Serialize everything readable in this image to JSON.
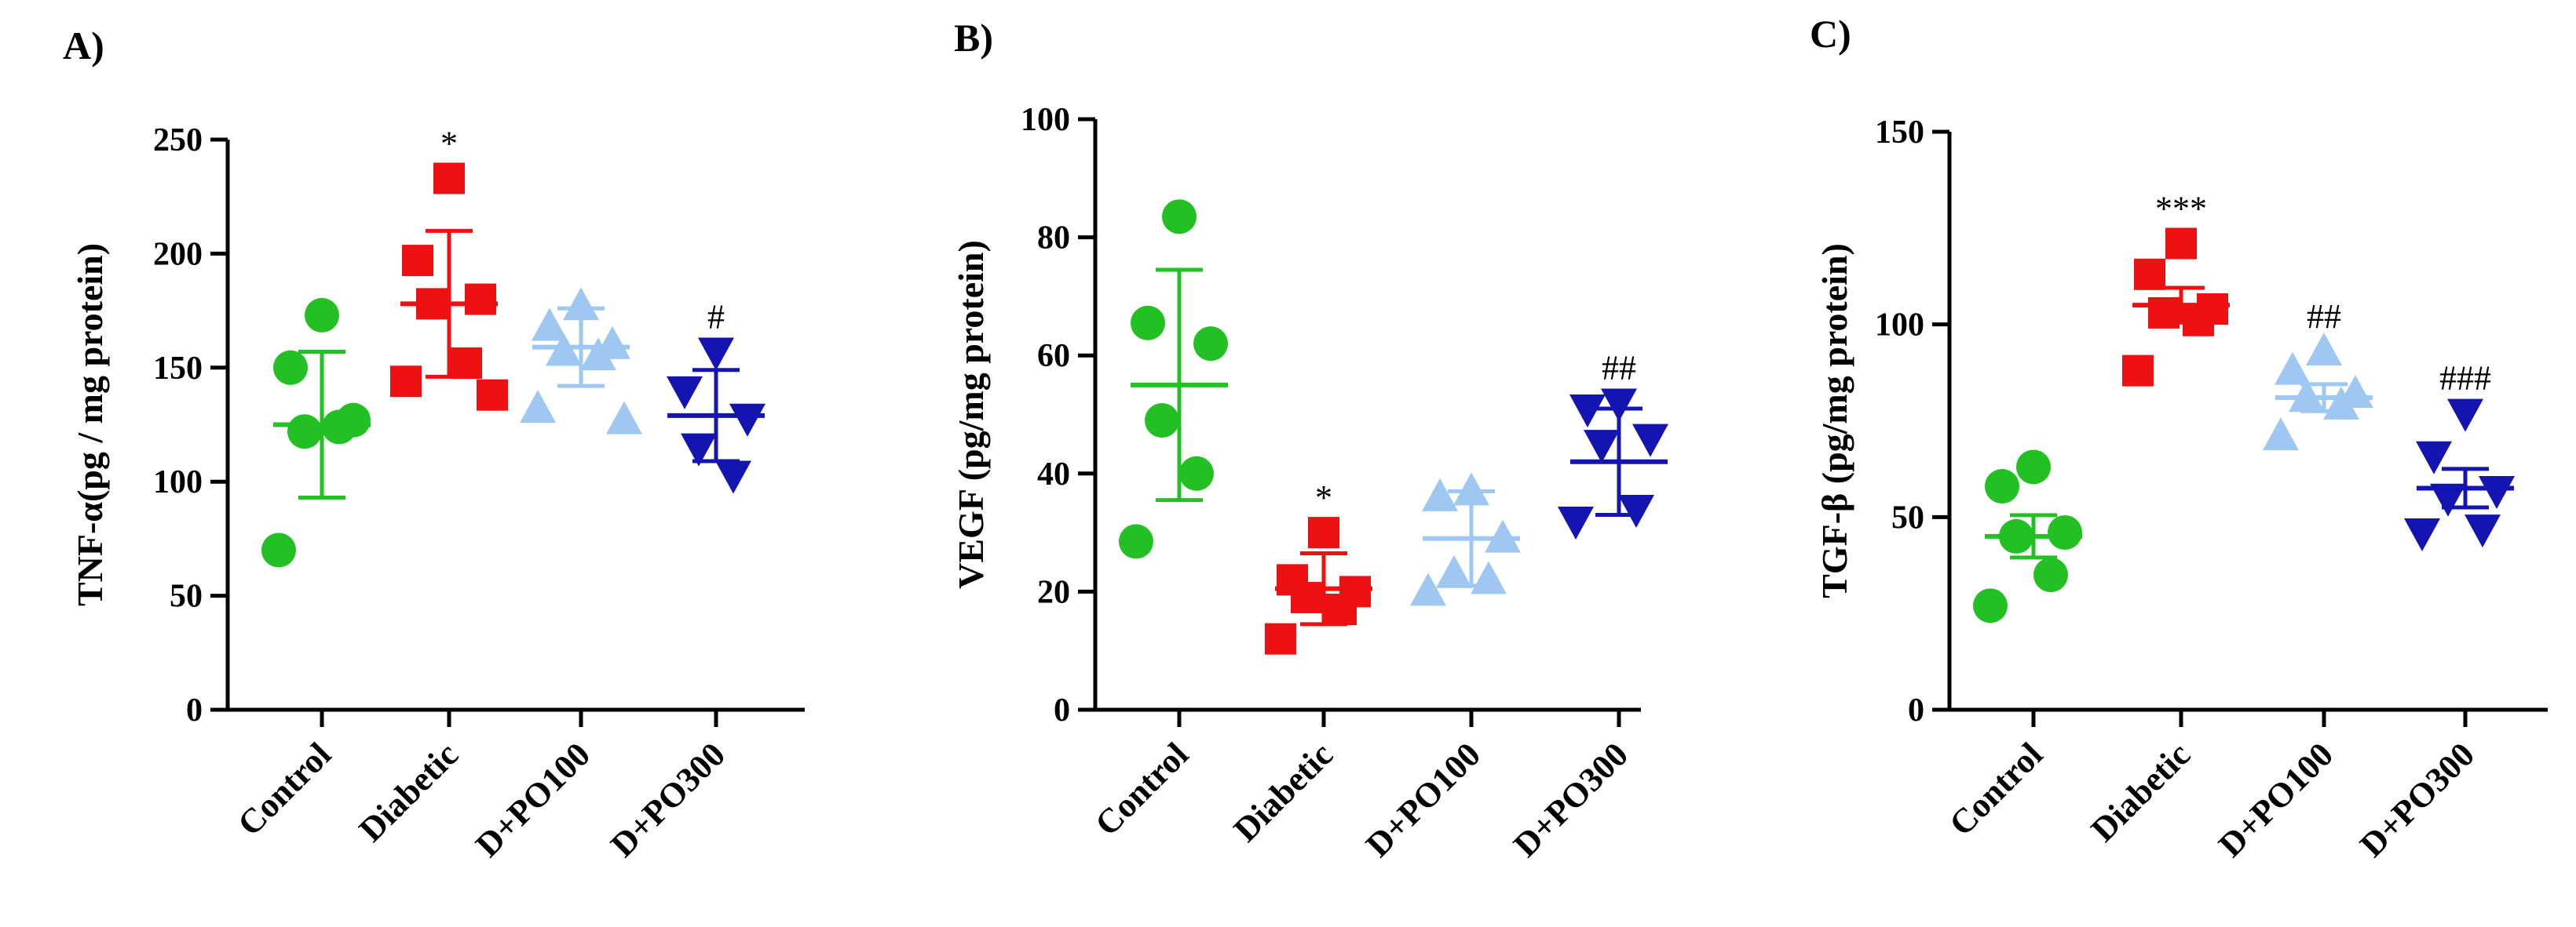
{
  "figure": {
    "panels": [
      "A)",
      "B)",
      "C)"
    ]
  },
  "chart_data": [
    {
      "type": "scatter",
      "panel_label": "A)",
      "ylabel": "TNF-α(pg / mg protein)",
      "xlabel": "",
      "ylim": [
        0,
        250
      ],
      "yticks": [
        0,
        50,
        100,
        150,
        200,
        250
      ],
      "categories": [
        "Control",
        "Diabetic",
        "D+PO100",
        "D+PO300"
      ],
      "groups": [
        {
          "name": "Control",
          "color": "#22c022",
          "marker": "circle",
          "points": [
            173,
            150,
            127,
            122,
            124,
            70
          ],
          "mean": 125,
          "sd": 32,
          "annotation": ""
        },
        {
          "name": "Diabetic",
          "color": "#ee1111",
          "marker": "square",
          "points": [
            233,
            197,
            180,
            178,
            152,
            144,
            138
          ],
          "mean": 178,
          "sd": 32,
          "annotation": "*"
        },
        {
          "name": "D+PO100",
          "color": "#9ec8f2",
          "marker": "triangle-up",
          "points": [
            177,
            168,
            160,
            157,
            155,
            132,
            127
          ],
          "mean": 159,
          "sd": 17,
          "annotation": ""
        },
        {
          "name": "D+PO300",
          "color": "#1414b0",
          "marker": "triangle-down",
          "points": [
            157,
            140,
            128,
            115,
            103
          ],
          "mean": 129,
          "sd": 20,
          "annotation": "#"
        }
      ]
    },
    {
      "type": "scatter",
      "panel_label": "B)",
      "ylabel": "VEGF (pg/mg protein)",
      "xlabel": "",
      "ylim": [
        0,
        100
      ],
      "yticks": [
        0,
        20,
        40,
        60,
        80,
        100
      ],
      "categories": [
        "Control",
        "Diabetic",
        "D+PO100",
        "D+PO300"
      ],
      "groups": [
        {
          "name": "Control",
          "color": "#22c022",
          "marker": "circle",
          "points": [
            83.5,
            65.5,
            62,
            49,
            40,
            28.5
          ],
          "mean": 55,
          "sd": 19.5,
          "annotation": ""
        },
        {
          "name": "Diabetic",
          "color": "#ee1111",
          "marker": "square",
          "points": [
            30,
            22,
            20,
            19,
            17,
            12
          ],
          "mean": 20.5,
          "sd": 6,
          "annotation": "*"
        },
        {
          "name": "D+PO100",
          "color": "#9ec8f2",
          "marker": "triangle-up",
          "points": [
            37,
            36,
            29,
            23,
            22,
            20
          ],
          "mean": 29,
          "sd": 8,
          "annotation": ""
        },
        {
          "name": "D+PO300",
          "color": "#1414b0",
          "marker": "triangle-down",
          "points": [
            52,
            51,
            46,
            45,
            34,
            32
          ],
          "mean": 42,
          "sd": 9,
          "annotation": "##"
        }
      ]
    },
    {
      "type": "scatter",
      "panel_label": "C)",
      "ylabel": "TGF-β (pg/mg protein)",
      "xlabel": "",
      "ylim": [
        0,
        150
      ],
      "yticks": [
        0,
        50,
        100,
        150
      ],
      "categories": [
        "Control",
        "Diabetic",
        "D+PO100",
        "D+PO300"
      ],
      "groups": [
        {
          "name": "Control",
          "color": "#22c022",
          "marker": "circle",
          "points": [
            63,
            58,
            46,
            45,
            35,
            27
          ],
          "mean": 45,
          "sd": 5.5,
          "annotation": ""
        },
        {
          "name": "Diabetic",
          "color": "#ee1111",
          "marker": "square",
          "points": [
            121,
            113,
            104,
            103,
            101,
            88
          ],
          "mean": 105,
          "sd": 4.5,
          "annotation": "***"
        },
        {
          "name": "D+PO100",
          "color": "#9ec8f2",
          "marker": "triangle-up",
          "points": [
            93,
            88,
            82,
            81,
            79,
            71
          ],
          "mean": 81,
          "sd": 3.5,
          "annotation": "##"
        },
        {
          "name": "D+PO300",
          "color": "#1414b0",
          "marker": "triangle-down",
          "points": [
            77,
            66,
            57,
            55,
            47,
            46
          ],
          "mean": 57.5,
          "sd": 5,
          "annotation": "###"
        }
      ]
    }
  ]
}
